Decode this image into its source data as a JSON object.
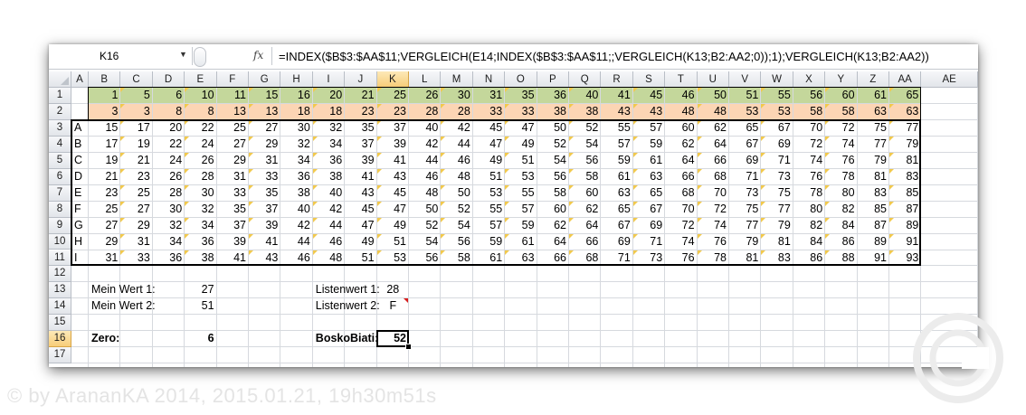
{
  "name_box": "K16",
  "formula_icon": "fx-icon",
  "formula": "=INDEX($B$3:$AA$11;VERGLEICH(E14;INDEX($B$3:$AA$11;;VERGLEICH(K13;B2:AA2;0));1);VERGLEICH(K13;B2:AA2))",
  "columns": [
    "A",
    "B",
    "C",
    "D",
    "E",
    "F",
    "G",
    "H",
    "I",
    "J",
    "K",
    "L",
    "M",
    "N",
    "O",
    "P",
    "Q",
    "R",
    "S",
    "T",
    "U",
    "V",
    "W",
    "X",
    "Y",
    "Z",
    "AA",
    "AE"
  ],
  "rows": [
    "1",
    "2",
    "3",
    "4",
    "5",
    "6",
    "7",
    "8",
    "9",
    "10",
    "11",
    "12",
    "13",
    "14",
    "15",
    "16",
    "17"
  ],
  "selected": {
    "column": "K",
    "row": "16"
  },
  "colors": {
    "row1_fill": "#c4d79b",
    "row2_fill": "#fcd5b4",
    "selection_header": "#f7cd79",
    "note_marker": "#f2c94c",
    "comment_marker": "#d81c1c"
  },
  "row_labels": [
    "A",
    "B",
    "C",
    "D",
    "E",
    "F",
    "G",
    "H",
    "I"
  ],
  "row1_values": [
    1,
    5,
    6,
    10,
    11,
    15,
    16,
    20,
    21,
    25,
    26,
    30,
    31,
    35,
    36,
    40,
    41,
    45,
    46,
    50,
    51,
    55,
    56,
    60,
    61,
    65
  ],
  "row2_values": [
    3,
    3,
    8,
    8,
    13,
    13,
    18,
    18,
    23,
    23,
    28,
    28,
    33,
    33,
    38,
    38,
    43,
    43,
    48,
    48,
    53,
    53,
    58,
    58,
    63,
    63
  ],
  "table": [
    [
      15,
      17,
      20,
      22,
      25,
      27,
      30,
      32,
      35,
      37,
      40,
      42,
      45,
      47,
      50,
      52,
      55,
      57,
      60,
      62,
      65,
      67,
      70,
      72,
      75,
      77
    ],
    [
      17,
      19,
      22,
      24,
      27,
      29,
      32,
      34,
      37,
      39,
      42,
      44,
      47,
      49,
      52,
      54,
      57,
      59,
      62,
      64,
      67,
      69,
      72,
      74,
      77,
      79
    ],
    [
      19,
      21,
      24,
      26,
      29,
      31,
      34,
      36,
      39,
      41,
      44,
      46,
      49,
      51,
      54,
      56,
      59,
      61,
      64,
      66,
      69,
      71,
      74,
      76,
      79,
      81
    ],
    [
      21,
      23,
      26,
      28,
      31,
      33,
      36,
      38,
      41,
      43,
      46,
      48,
      51,
      53,
      56,
      58,
      61,
      63,
      66,
      68,
      71,
      73,
      76,
      78,
      81,
      83
    ],
    [
      23,
      25,
      28,
      30,
      33,
      35,
      38,
      40,
      43,
      45,
      48,
      50,
      53,
      55,
      58,
      60,
      63,
      65,
      68,
      70,
      73,
      75,
      78,
      80,
      83,
      85
    ],
    [
      25,
      27,
      30,
      32,
      35,
      37,
      40,
      42,
      45,
      47,
      50,
      52,
      55,
      57,
      60,
      62,
      65,
      67,
      70,
      72,
      75,
      77,
      80,
      82,
      85,
      87
    ],
    [
      27,
      29,
      32,
      34,
      37,
      39,
      42,
      44,
      47,
      49,
      52,
      54,
      57,
      59,
      62,
      64,
      67,
      69,
      72,
      74,
      77,
      79,
      82,
      84,
      87,
      89
    ],
    [
      29,
      31,
      34,
      36,
      39,
      41,
      44,
      46,
      49,
      51,
      54,
      56,
      59,
      61,
      64,
      66,
      69,
      71,
      74,
      76,
      79,
      81,
      84,
      86,
      89,
      91
    ],
    [
      31,
      33,
      36,
      38,
      41,
      43,
      46,
      48,
      51,
      53,
      56,
      58,
      61,
      63,
      66,
      68,
      71,
      73,
      76,
      78,
      81,
      83,
      86,
      88,
      91,
      93
    ]
  ],
  "inputs": {
    "mein_wert1_label": "Mein Wert 1:",
    "mein_wert1_value": "27",
    "mein_wert2_label": "Mein Wert 2:",
    "mein_wert2_value": "51",
    "listenwert1_label": "Listenwert 1:",
    "listenwert1_value": "28",
    "listenwert2_label": "Listenwert 2:",
    "listenwert2_value": "F",
    "zero_label": "Zero:",
    "zero_value": "6",
    "bosko_label": "BoskoBiati:",
    "bosko_value": "52"
  },
  "watermark": "© by ArananKA 2014, 2015.01.21, 19h30m51s"
}
